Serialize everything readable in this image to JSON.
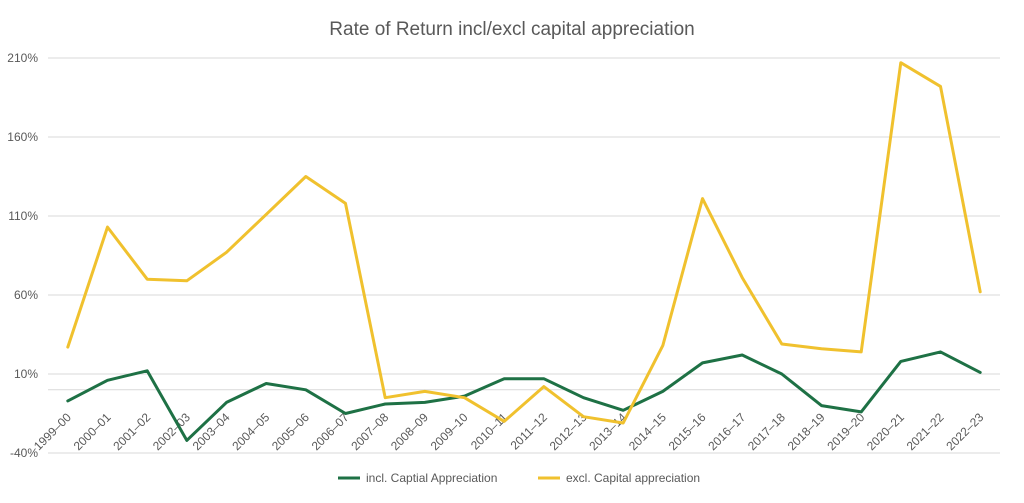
{
  "chart_data": {
    "type": "line",
    "title": "Rate of Return incl/excl capital appreciation",
    "xlabel": "",
    "ylabel": "",
    "ylim": [
      -40,
      210
    ],
    "yticks": [
      -40,
      10,
      60,
      110,
      160,
      210
    ],
    "ytick_labels": [
      "-40%",
      "10%",
      "60%",
      "110%",
      "160%",
      "210%"
    ],
    "grid": true,
    "legend_position": "bottom",
    "categories": [
      "1999–00",
      "2000–01",
      "2001–02",
      "2002–03",
      "2003–04",
      "2004–05",
      "2005–06",
      "2006–07",
      "2007–08",
      "2008–09",
      "2009–10",
      "2010–11",
      "2011–12",
      "2012–13",
      "2013–14",
      "2014–15",
      "2015–16",
      "2016–17",
      "2017–18",
      "2018–19",
      "2019–20",
      "2020–21",
      "2021–22",
      "2022–23"
    ],
    "series": [
      {
        "name": "incl. Captial Appreciation",
        "color": "#1e7145",
        "values": [
          -7,
          6,
          12,
          -32,
          -8,
          4,
          0,
          -15,
          -9,
          -8,
          -4,
          7,
          7,
          -5,
          -13,
          -1,
          17,
          22,
          10,
          -10,
          -14,
          18,
          24,
          11
        ]
      },
      {
        "name": "excl. Capital appreciation",
        "color": "#f0c12e",
        "values": [
          27,
          103,
          70,
          69,
          87,
          111,
          135,
          118,
          -5,
          -1,
          -5,
          -20,
          2,
          -17,
          -21,
          28,
          121,
          71,
          29,
          26,
          24,
          207,
          192,
          62
        ]
      }
    ]
  }
}
